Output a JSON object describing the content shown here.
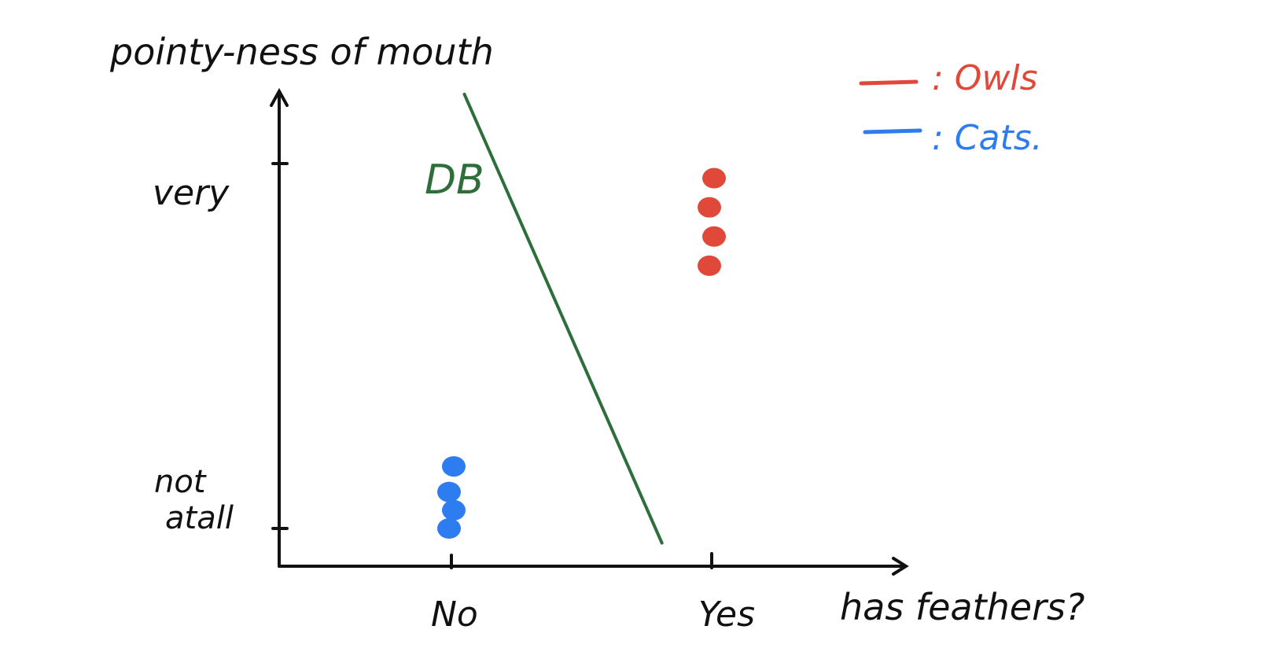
{
  "chart_data": {
    "type": "scatter",
    "ylabel": "pointy-ness of mouth",
    "xlabel": "has feathers?",
    "x_categories": [
      "No",
      "Yes"
    ],
    "y_ticks": [
      "very",
      "not atall"
    ],
    "y_range": [
      0,
      1
    ],
    "decision_boundary_label": "DB",
    "series": [
      {
        "name": "Owls",
        "legend_label": ": Owls",
        "color": "#e0493a",
        "points": [
          {
            "x": "Yes",
            "y": 0.96
          },
          {
            "x": "Yes",
            "y": 0.88
          },
          {
            "x": "Yes",
            "y": 0.8
          },
          {
            "x": "Yes",
            "y": 0.72
          }
        ]
      },
      {
        "name": "Cats",
        "legend_label": ": Cats.",
        "color": "#2d7cf0",
        "points": [
          {
            "x": "No",
            "y": 0.17
          },
          {
            "x": "No",
            "y": 0.1
          },
          {
            "x": "No",
            "y": 0.05
          },
          {
            "x": "No",
            "y": 0.0
          }
        ]
      }
    ],
    "decision_boundary": {
      "color": "#2e6e3a",
      "start": {
        "x": 0.3,
        "y": 1.19
      },
      "end": {
        "x": 0.62,
        "y": -0.04
      }
    },
    "grid": false,
    "legend_placement": "top-right"
  }
}
